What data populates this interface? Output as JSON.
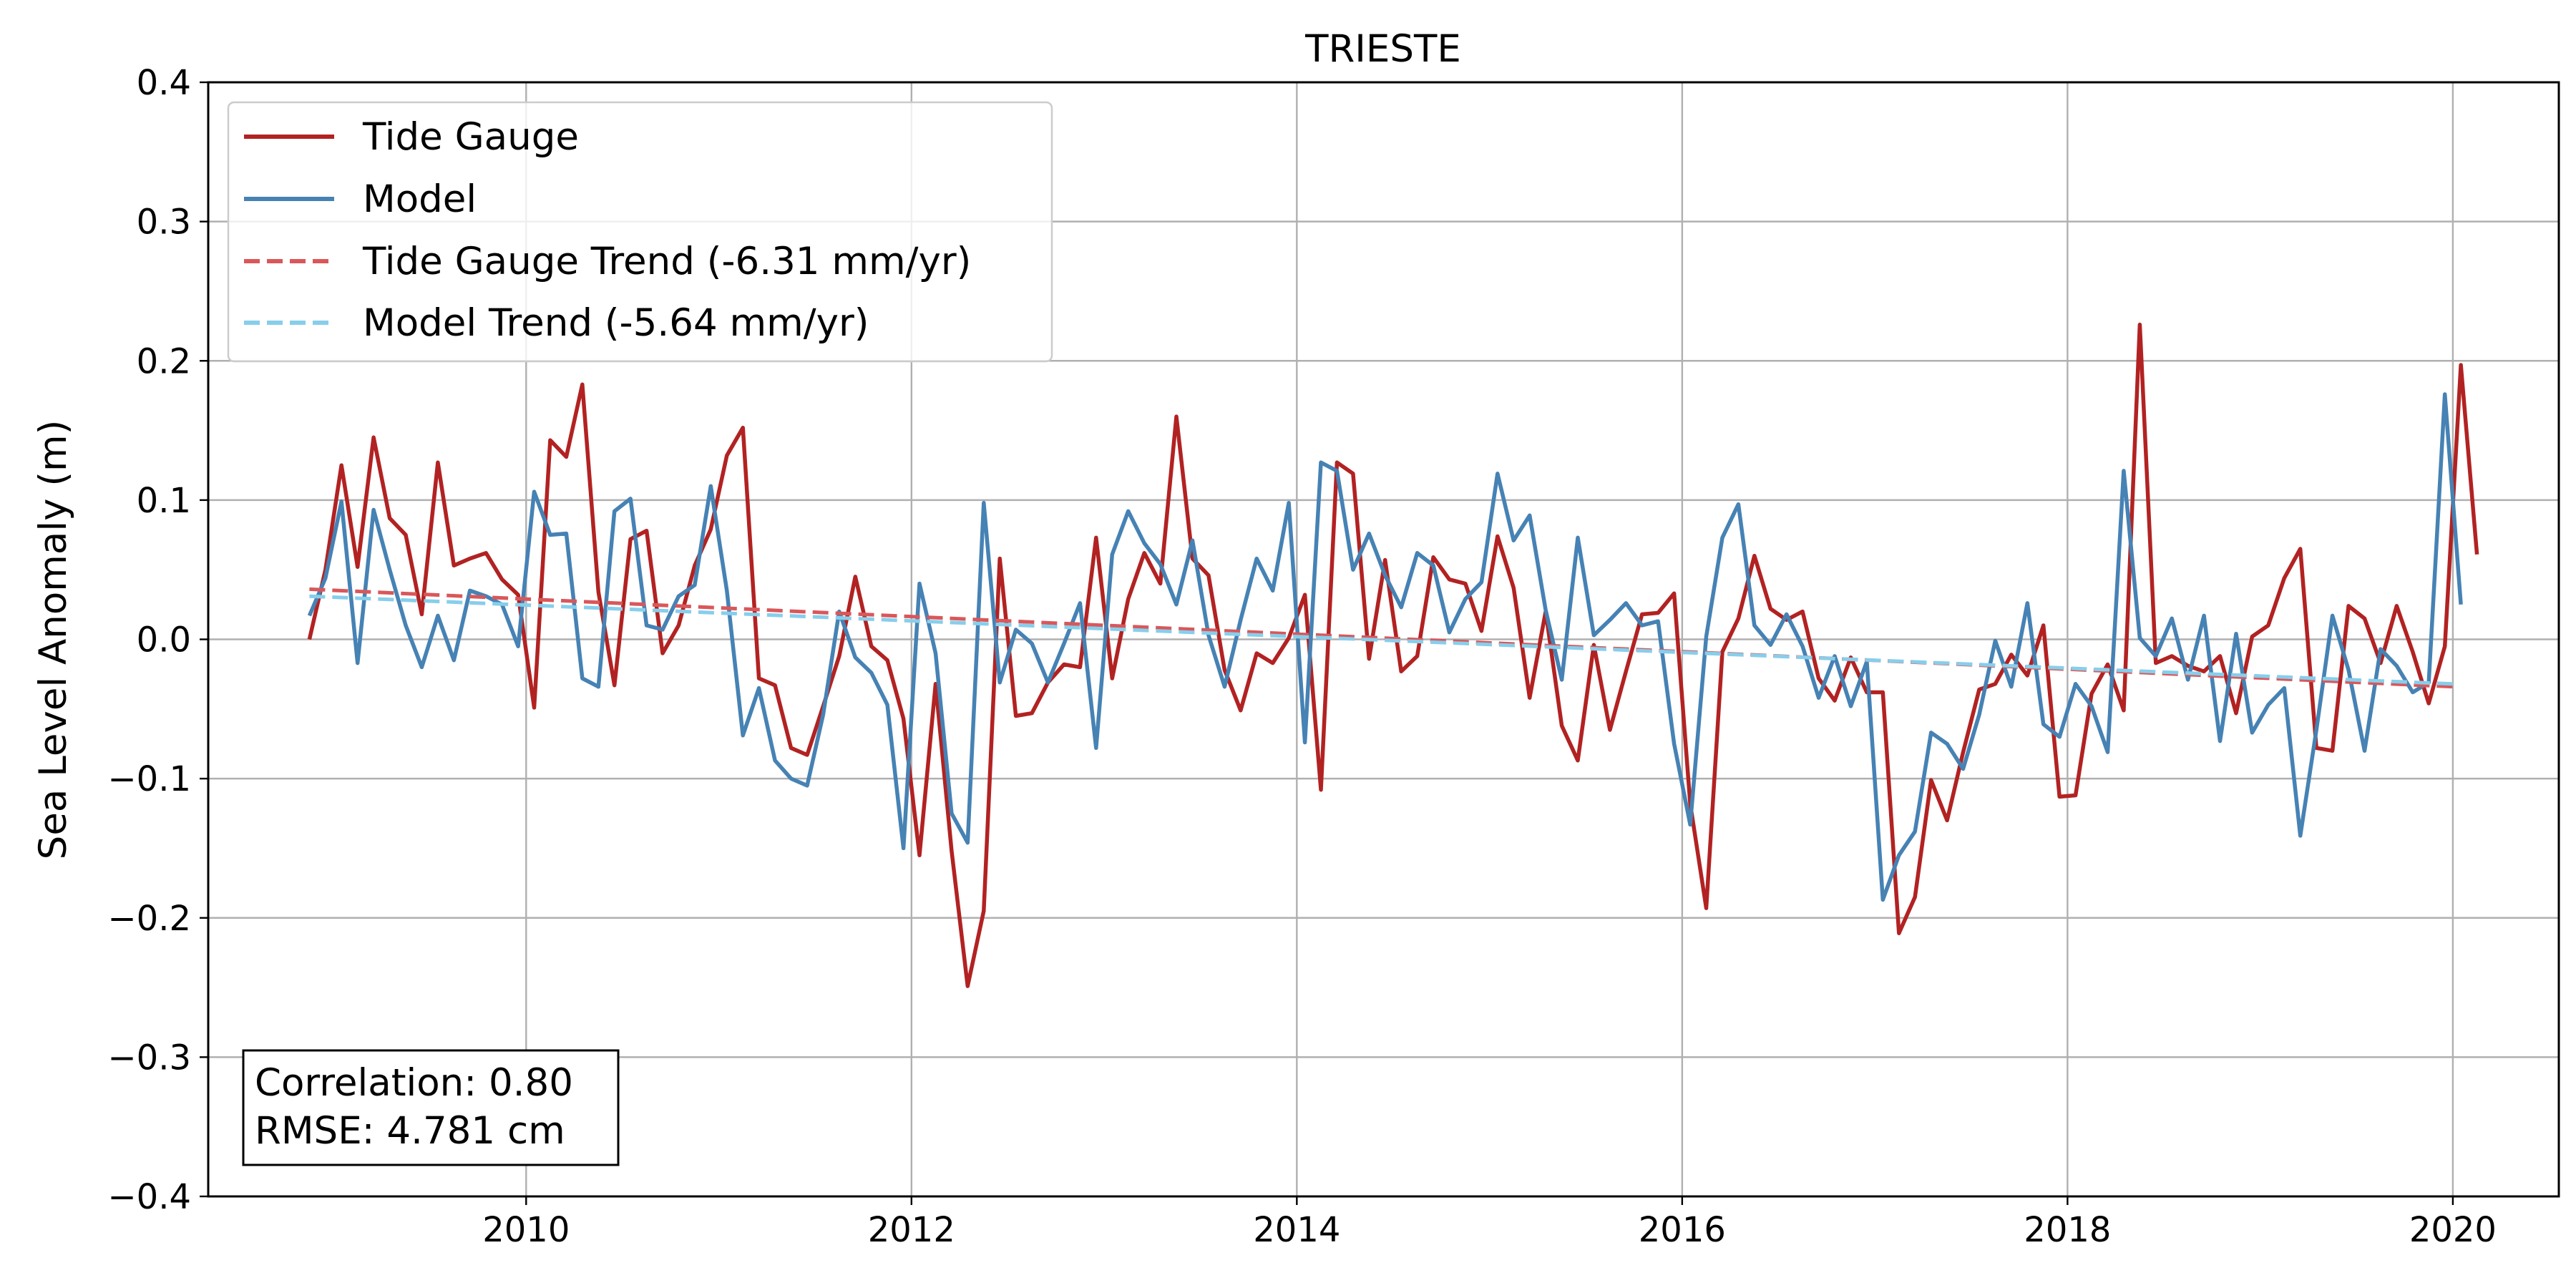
{
  "chart_data": {
    "type": "line",
    "title": "TRIESTE",
    "xlabel": "",
    "ylabel": "Sea Level Anomaly (m)",
    "xlim": [
      2008.35,
      2020.55
    ],
    "ylim": [
      -0.4,
      0.4
    ],
    "x_ticks": [
      2010,
      2012,
      2014,
      2016,
      2018,
      2020
    ],
    "x_tick_labels": [
      "2010",
      "2012",
      "2014",
      "2016",
      "2018",
      "2020"
    ],
    "y_ticks": [
      -0.4,
      -0.3,
      -0.2,
      -0.1,
      0.0,
      0.1,
      0.2,
      0.3,
      0.4
    ],
    "y_tick_labels": [
      "−0.4",
      "−0.3",
      "−0.2",
      "−0.1",
      "0.0",
      "0.1",
      "0.2",
      "0.3",
      "0.4"
    ],
    "grid": true,
    "legend_position": "upper-left",
    "x_start": 2008.875,
    "x_step": 0.0833333,
    "series": [
      {
        "name": "Tide Gauge",
        "color": "#b22222",
        "style": "solid",
        "values": [
          0.0,
          0.05,
          0.125,
          0.052,
          0.145,
          0.087,
          0.075,
          0.018,
          0.127,
          0.053,
          0.058,
          0.062,
          0.043,
          0.032,
          -0.049,
          0.143,
          0.131,
          0.183,
          0.034,
          -0.033,
          0.072,
          0.078,
          -0.01,
          0.01,
          0.053,
          0.079,
          0.132,
          0.152,
          -0.028,
          -0.033,
          -0.078,
          -0.083,
          -0.048,
          -0.012,
          0.045,
          -0.005,
          -0.015,
          -0.057,
          -0.155,
          -0.032,
          -0.152,
          -0.249,
          -0.195,
          0.058,
          -0.055,
          -0.053,
          -0.031,
          -0.018,
          -0.02,
          0.073,
          -0.028,
          0.029,
          0.062,
          0.04,
          0.16,
          0.058,
          0.046,
          -0.022,
          -0.051,
          -0.01,
          -0.017,
          0.001,
          0.032,
          -0.108,
          0.127,
          0.119,
          -0.014,
          0.057,
          -0.023,
          -0.012,
          0.059,
          0.043,
          0.04,
          0.006,
          0.074,
          0.037,
          -0.042,
          0.02,
          -0.062,
          -0.087,
          -0.004,
          -0.065,
          -0.023,
          0.018,
          0.019,
          0.033,
          -0.118,
          -0.193,
          -0.009,
          0.015,
          0.06,
          0.022,
          0.014,
          0.02,
          -0.028,
          -0.044,
          -0.013,
          -0.038,
          -0.038,
          -0.211,
          -0.185,
          -0.101,
          -0.13,
          -0.081,
          -0.036,
          -0.032,
          -0.011,
          -0.026,
          0.01,
          -0.113,
          -0.112,
          -0.039,
          -0.018,
          -0.051,
          0.226,
          -0.017,
          -0.012,
          -0.019,
          -0.023,
          -0.012,
          -0.053,
          0.002,
          0.01,
          0.044,
          0.065,
          -0.078,
          -0.08,
          0.024,
          0.015,
          -0.017,
          0.024,
          -0.009,
          -0.046,
          -0.005,
          0.197,
          0.061
        ]
      },
      {
        "name": "Model",
        "color": "#4682b4",
        "style": "solid",
        "values": [
          0.017,
          0.044,
          0.099,
          -0.017,
          0.093,
          0.05,
          0.01,
          -0.02,
          0.017,
          -0.015,
          0.035,
          0.031,
          0.025,
          -0.005,
          0.106,
          0.075,
          0.076,
          -0.028,
          -0.034,
          0.092,
          0.101,
          0.01,
          0.007,
          0.031,
          0.039,
          0.11,
          0.035,
          -0.069,
          -0.035,
          -0.087,
          -0.1,
          -0.105,
          -0.054,
          0.02,
          -0.013,
          -0.024,
          -0.047,
          -0.15,
          0.04,
          -0.01,
          -0.125,
          -0.146,
          0.098,
          -0.031,
          0.007,
          -0.003,
          -0.031,
          -0.003,
          0.026,
          -0.078,
          0.061,
          0.092,
          0.069,
          0.054,
          0.025,
          0.071,
          0.003,
          -0.034,
          0.014,
          0.058,
          0.035,
          0.098,
          -0.074,
          0.127,
          0.121,
          0.05,
          0.076,
          0.046,
          0.023,
          0.062,
          0.053,
          0.005,
          0.029,
          0.041,
          0.119,
          0.071,
          0.089,
          0.021,
          -0.029,
          0.073,
          0.003,
          0.014,
          0.026,
          0.01,
          0.013,
          -0.075,
          -0.133,
          0.002,
          0.073,
          0.097,
          0.01,
          -0.004,
          0.018,
          -0.005,
          -0.042,
          -0.012,
          -0.048,
          -0.016,
          -0.187,
          -0.155,
          -0.138,
          -0.067,
          -0.075,
          -0.093,
          -0.054,
          -0.001,
          -0.034,
          0.026,
          -0.061,
          -0.07,
          -0.032,
          -0.048,
          -0.081,
          0.121,
          0.001,
          -0.012,
          0.015,
          -0.029,
          0.017,
          -0.073,
          0.004,
          -0.067,
          -0.047,
          -0.035,
          -0.141,
          -0.065,
          0.017,
          -0.022,
          -0.08,
          -0.007,
          -0.019,
          -0.038,
          -0.031,
          0.176,
          0.025
        ]
      },
      {
        "name": "Tide Gauge Trend (-6.31 mm/yr)",
        "color": "#d9575a",
        "style": "dashed",
        "x": [
          2008.875,
          2020.0
        ],
        "values": [
          0.036,
          -0.034
        ]
      },
      {
        "name": "Model Trend (-5.64 mm/yr)",
        "color": "#87ceeb",
        "style": "dashed",
        "x": [
          2008.875,
          2020.0
        ],
        "values": [
          0.031,
          -0.032
        ]
      }
    ],
    "annotations": {
      "correlation": "Correlation: 0.80",
      "rmse": "RMSE: 4.781 cm"
    }
  }
}
